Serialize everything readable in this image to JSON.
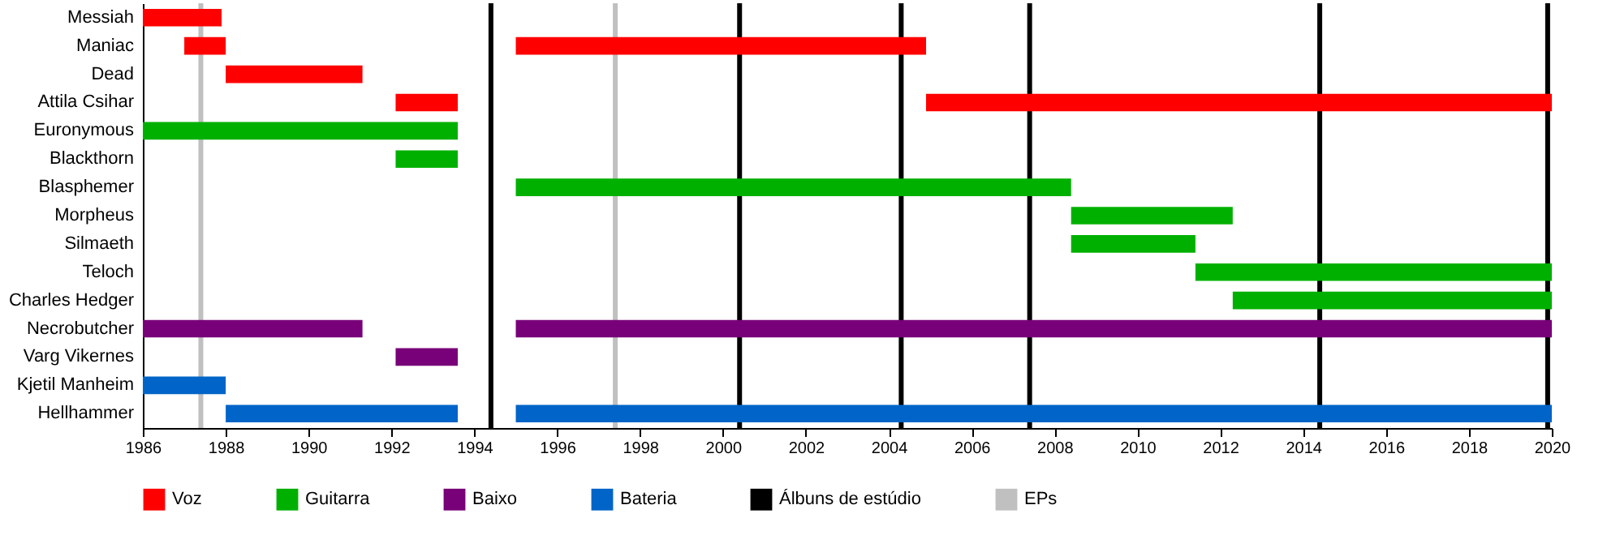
{
  "chart_data": {
    "type": "bar",
    "orientation": "horizontal",
    "categories": [
      "Messiah",
      "Maniac",
      "Dead",
      "Attila Csihar",
      "Euronymous",
      "Blackthorn",
      "Blasphemer",
      "Morpheus",
      "Silmaeth",
      "Teloch",
      "Charles Hedger",
      "Necrobutcher",
      "Varg Vikernes",
      "Kjetil Manheim",
      "Hellhammer"
    ],
    "series": [
      {
        "name": "Voz",
        "color": "#ff0000",
        "base": [
          1986.0,
          1987.0,
          1988.0,
          1992.1,
          null,
          null,
          null,
          null,
          null,
          null,
          null,
          null,
          null,
          null,
          null
        ],
        "values": [
          1.9,
          1.0,
          3.3,
          1.5,
          null,
          null,
          null,
          null,
          null,
          null,
          null,
          null,
          null,
          null,
          null
        ]
      },
      {
        "color": "#ff0000",
        "base": [
          null,
          1995.0,
          null,
          2004.9,
          null,
          null,
          null,
          null,
          null,
          null,
          null,
          null,
          null,
          null,
          null
        ],
        "values": [
          null,
          9.9,
          null,
          15.1,
          null,
          null,
          null,
          null,
          null,
          null,
          null,
          null,
          null,
          null,
          null
        ]
      },
      {
        "name": "Guitarra",
        "color": "#00b000",
        "base": [
          null,
          null,
          null,
          null,
          1986.0,
          1992.1,
          1995.0,
          2008.4,
          2008.4,
          2011.4,
          2012.3,
          null,
          null,
          null,
          null
        ],
        "values": [
          null,
          null,
          null,
          null,
          7.6,
          1.5,
          13.4,
          3.9,
          3.0,
          8.6,
          7.7,
          null,
          null,
          null,
          null
        ]
      },
      {
        "name": "Baixo",
        "color": "#780078",
        "base": [
          null,
          null,
          null,
          null,
          null,
          null,
          null,
          null,
          null,
          null,
          null,
          1986.0,
          1992.1,
          null,
          null
        ],
        "values": [
          null,
          null,
          null,
          null,
          null,
          null,
          null,
          null,
          null,
          null,
          null,
          5.3,
          1.5,
          null,
          null
        ]
      },
      {
        "color": "#780078",
        "base": [
          null,
          null,
          null,
          null,
          null,
          null,
          null,
          null,
          null,
          null,
          null,
          1995.0,
          null,
          null,
          null
        ],
        "values": [
          null,
          null,
          null,
          null,
          null,
          null,
          null,
          null,
          null,
          null,
          null,
          25.0,
          null,
          null,
          null
        ]
      },
      {
        "name": "Bateria",
        "color": "#0064c8",
        "base": [
          null,
          null,
          null,
          null,
          null,
          null,
          null,
          null,
          null,
          null,
          null,
          null,
          null,
          1986.0,
          1988.0
        ],
        "values": [
          null,
          null,
          null,
          null,
          null,
          null,
          null,
          null,
          null,
          null,
          null,
          null,
          null,
          2.0,
          5.6
        ]
      },
      {
        "color": "#0064c8",
        "base": [
          null,
          null,
          null,
          null,
          null,
          null,
          null,
          null,
          null,
          null,
          null,
          null,
          null,
          null,
          1995.0
        ],
        "values": [
          null,
          null,
          null,
          null,
          null,
          null,
          null,
          null,
          null,
          null,
          null,
          null,
          null,
          null,
          25.0
        ]
      }
    ],
    "ref_lines": [
      {
        "axis": "x",
        "value": 1994.4,
        "label": "Álbuns de estúdio",
        "color": "#000000"
      },
      {
        "axis": "x",
        "value": 2000.4,
        "color": "#000000"
      },
      {
        "axis": "x",
        "value": 2004.3,
        "color": "#000000"
      },
      {
        "axis": "x",
        "value": 2007.4,
        "color": "#000000"
      },
      {
        "axis": "x",
        "value": 2014.4,
        "color": "#000000"
      },
      {
        "axis": "x",
        "value": 2019.9,
        "color": "#000000"
      },
      {
        "axis": "x",
        "value": 1987.4,
        "label": "EPs",
        "color": "#c0c0c0"
      },
      {
        "axis": "x",
        "value": 1997.4,
        "color": "#c0c0c0"
      }
    ],
    "xlim": [
      1986,
      2020
    ],
    "xticks": [
      1986,
      1988,
      1990,
      1992,
      1994,
      1996,
      1998,
      2000,
      2002,
      2004,
      2006,
      2008,
      2010,
      2012,
      2014,
      2016,
      2018,
      2020
    ],
    "grid": false,
    "legend": "bottom"
  }
}
